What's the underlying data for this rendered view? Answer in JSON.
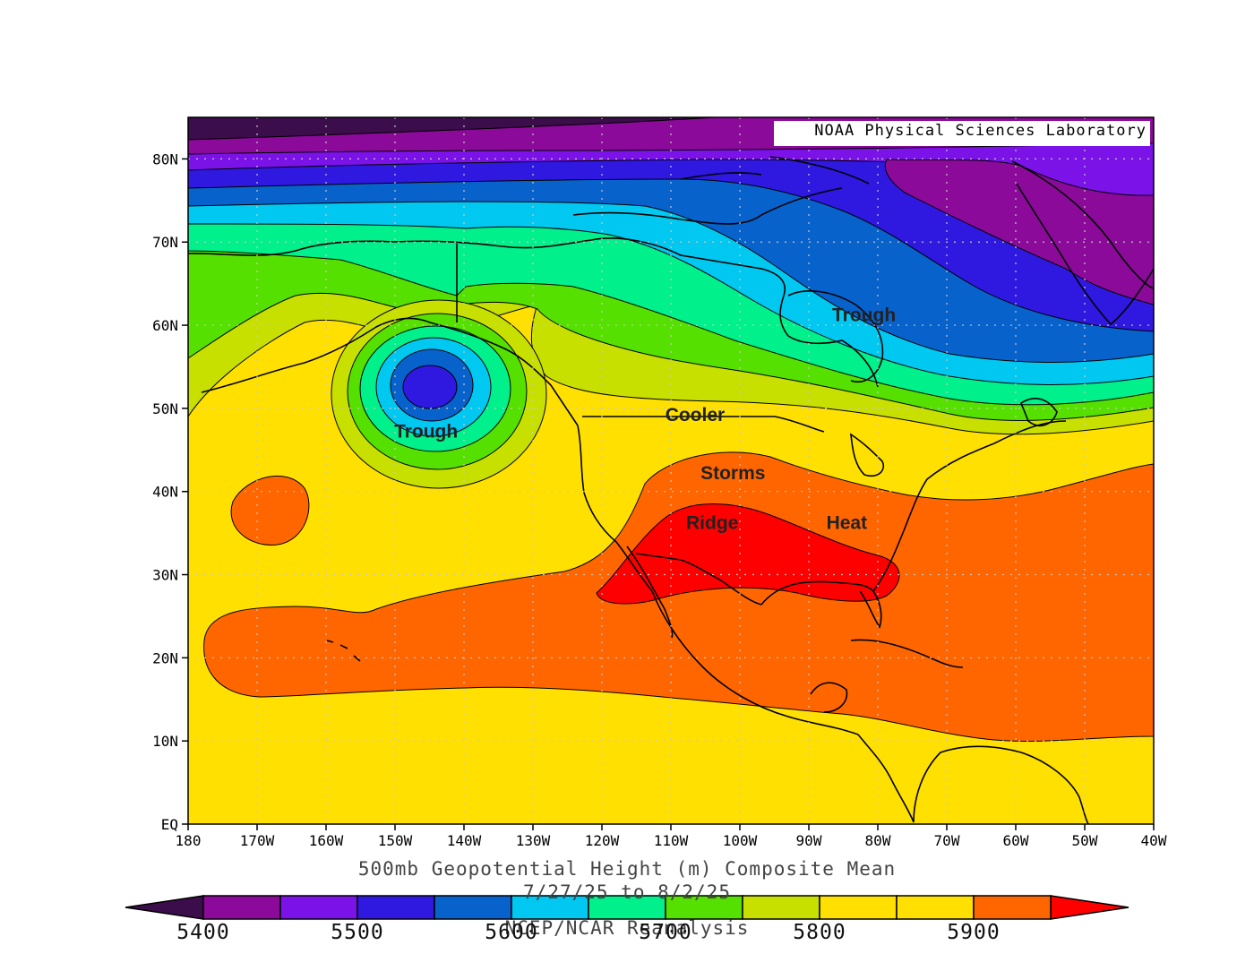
{
  "header": {
    "credit": "NOAA Physical Sciences Laboratory"
  },
  "map": {
    "type": "contour-map",
    "projection": "cylindrical-equidistant",
    "lon_range": [
      -180,
      -40
    ],
    "lat_range": [
      0,
      85
    ],
    "latitude_ticks": [
      "EQ",
      "10N",
      "20N",
      "30N",
      "40N",
      "50N",
      "60N",
      "70N",
      "80N"
    ],
    "longitude_ticks": [
      "180",
      "170W",
      "160W",
      "150W",
      "140W",
      "130W",
      "120W",
      "110W",
      "100W",
      "90W",
      "80W",
      "70W",
      "60W",
      "50W",
      "40W"
    ],
    "grid": true,
    "gridline_style": "dotted",
    "contour_interval_m": 50,
    "annotations": [
      {
        "text": "Trough",
        "lon": -145.5,
        "lat": 46.5
      },
      {
        "text": "Trough",
        "lon": -82,
        "lat": 60.5
      },
      {
        "text": "Cooler",
        "lon": -106.5,
        "lat": 48.5
      },
      {
        "text": "Storms",
        "lon": -101,
        "lat": 41.5
      },
      {
        "text": "Ridge",
        "lon": -104,
        "lat": 35.5
      },
      {
        "text": "Heat",
        "lon": -84.5,
        "lat": 35.5
      }
    ],
    "features": [
      {
        "name": "gulf-of-alaska-low",
        "lon": -144,
        "lat": 53,
        "value_m": 5550
      },
      {
        "name": "north-pacific-high",
        "lon": -168.5,
        "lat": 38.5,
        "value_m": 5900
      },
      {
        "name": "southern-us-ridge",
        "lon": -98,
        "lat": 32,
        "value_m": 5950
      }
    ]
  },
  "captions": {
    "variable": "500mb Geopotential Height (m) Composite Mean",
    "dates": "7/27/25  to 8/2/25",
    "source": "NCEP/NCAR Reanalysis"
  },
  "colorbar": {
    "labels": [
      "5400",
      "5500",
      "5600",
      "5700",
      "5800",
      "5900"
    ],
    "label_values": [
      5400,
      5500,
      5600,
      5700,
      5800,
      5900
    ],
    "min": 5400,
    "max": 5950,
    "step": 50,
    "under_color": "#3b0d4a",
    "over_color": "#ff0000",
    "colors": [
      "#8b0a9a",
      "#7b12e8",
      "#2f18e0",
      "#0862cc",
      "#00c8f0",
      "#00f08c",
      "#56e000",
      "#c8e000",
      "#ffe000",
      "#ffe000",
      "#ff6600"
    ]
  },
  "colors": {
    "land_outline": "#000000",
    "grid": "#c8c8c8"
  }
}
